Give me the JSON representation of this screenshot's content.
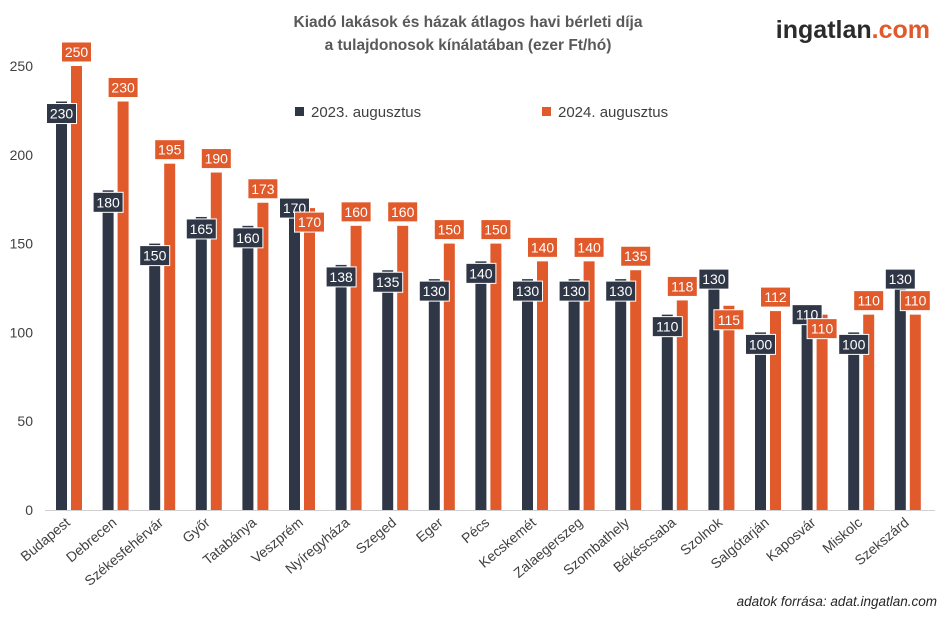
{
  "brand": {
    "name": "ingatlan",
    "suffix": ".com",
    "name_color": "#2b2b2b",
    "suffix_color": "#e05a2b"
  },
  "source": "adatok forrása: adat.ingatlan.com",
  "chart_data": {
    "type": "bar",
    "title_lines": [
      "Kiadó lakások és házak átlagos havi bérleti díja",
      "a tulajdonosok kínálatában (ezer Ft/hó)"
    ],
    "ylim": [
      0,
      250
    ],
    "yticks": [
      0,
      50,
      100,
      150,
      200,
      250
    ],
    "grid": false,
    "legend_position": "top",
    "categories": [
      "Budapest",
      "Debrecen",
      "Székesfehérvár",
      "Győr",
      "Tatabánya",
      "Veszprém",
      "Nyíregyháza",
      "Szeged",
      "Eger",
      "Pécs",
      "Kecskemét",
      "Zalaegerszeg",
      "Szombathely",
      "Békéscsaba",
      "Szolnok",
      "Salgótarján",
      "Kaposvár",
      "Miskolc",
      "Szekszárd"
    ],
    "series": [
      {
        "name": "2023. augusztus",
        "color": "#2f3747",
        "values": [
          230,
          180,
          150,
          165,
          160,
          170,
          138,
          135,
          130,
          140,
          130,
          130,
          130,
          110,
          130,
          100,
          110,
          100,
          130
        ]
      },
      {
        "name": "2024. augusztus",
        "color": "#e05a2b",
        "values": [
          250,
          230,
          195,
          190,
          173,
          170,
          160,
          160,
          150,
          150,
          140,
          140,
          135,
          118,
          115,
          112,
          110,
          110,
          110
        ]
      }
    ]
  }
}
